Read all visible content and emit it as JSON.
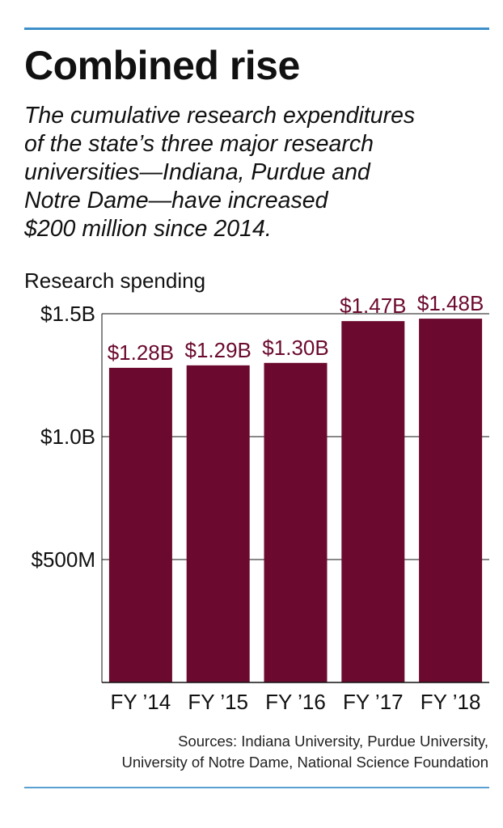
{
  "title": "Combined rise",
  "subtitle": "The cumulative research expenditures\nof the state’s three major research\nuniversities—Indiana, Purdue and\nNotre Dame—have increased\n$200 million since 2014.",
  "source": "Sources: Indiana University, Purdue University,\nUniversity of Notre Dame, National Science Foundation",
  "colors": {
    "bar": "#6b0a2e",
    "value_label": "#6b0a2e",
    "rule": "#3d8ec9"
  },
  "chart_data": {
    "type": "bar",
    "ylabel": "Research spending",
    "categories": [
      "FY ’14",
      "FY ’15",
      "FY ’16",
      "FY ’17",
      "FY ’18"
    ],
    "values": [
      1.28,
      1.29,
      1.3,
      1.47,
      1.48
    ],
    "value_labels": [
      "$1.28B",
      "$1.29B",
      "$1.30B",
      "$1.47B",
      "$1.48B"
    ],
    "unit": "billions USD",
    "ylim": [
      0,
      1.5
    ],
    "yticks": [
      {
        "value": 0.5,
        "label": "$500M"
      },
      {
        "value": 1.0,
        "label": "$1.0B"
      },
      {
        "value": 1.5,
        "label": "$1.5B"
      }
    ],
    "grid": true
  }
}
